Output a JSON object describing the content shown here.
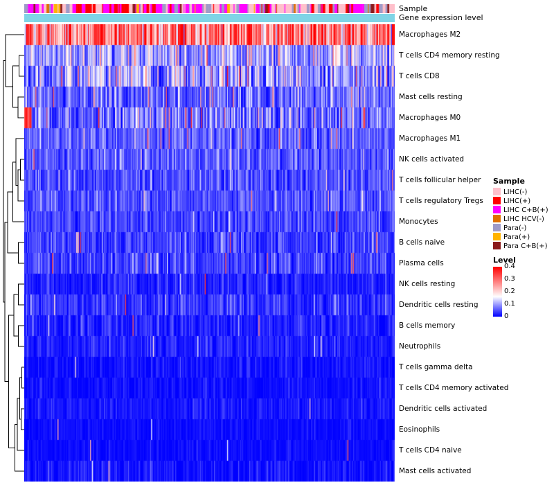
{
  "figure": {
    "annotation_labels": {
      "sample": "Sample",
      "gene": "Gene expression level"
    }
  },
  "chart_data": {
    "type": "heatmap",
    "title": "",
    "n_columns": 400,
    "n_rows": 22,
    "value_range": [
      0,
      0.4
    ],
    "color_scale": {
      "low": "#0000FF",
      "mid": "#FFFFFF",
      "high": "#FF0000",
      "midpoint": 0.16
    },
    "rows": [
      {
        "label": "Macrophages M2",
        "mean": 0.3,
        "sd": 0.08,
        "speckle": 0.03
      },
      {
        "label": "T cells CD4 memory resting",
        "mean": 0.105,
        "sd": 0.05,
        "speckle": 0.05
      },
      {
        "label": "T cells CD8",
        "mean": 0.1,
        "sd": 0.06,
        "speckle": 0.05
      },
      {
        "label": "Mast cells resting",
        "mean": 0.06,
        "sd": 0.035,
        "speckle": 0.04
      },
      {
        "label": "Macrophages M0",
        "mean": 0.07,
        "sd": 0.05,
        "speckle": 0.04,
        "left_high": 8
      },
      {
        "label": "Macrophages M1",
        "mean": 0.06,
        "sd": 0.03,
        "speckle": 0.02
      },
      {
        "label": "NK cells activated",
        "mean": 0.055,
        "sd": 0.03,
        "speckle": 0.02
      },
      {
        "label": "T cells follicular helper",
        "mean": 0.05,
        "sd": 0.028,
        "speckle": 0.02
      },
      {
        "label": "T cells regulatory Tregs",
        "mean": 0.05,
        "sd": 0.025,
        "speckle": 0.015
      },
      {
        "label": "Monocytes",
        "mean": 0.042,
        "sd": 0.025,
        "speckle": 0.015
      },
      {
        "label": "B cells naive",
        "mean": 0.04,
        "sd": 0.03,
        "speckle": 0.02
      },
      {
        "label": "Plasma cells",
        "mean": 0.04,
        "sd": 0.03,
        "speckle": 0.02
      },
      {
        "label": "NK cells resting",
        "mean": 0.02,
        "sd": 0.02,
        "speckle": 0.008
      },
      {
        "label": "Dendritic cells resting",
        "mean": 0.03,
        "sd": 0.024,
        "speckle": 0.01
      },
      {
        "label": "B cells memory",
        "mean": 0.02,
        "sd": 0.02,
        "speckle": 0.008
      },
      {
        "label": "Neutrophils",
        "mean": 0.02,
        "sd": 0.018,
        "speckle": 0.008
      },
      {
        "label": "T cells gamma delta",
        "mean": 0.01,
        "sd": 0.014,
        "speckle": 0.004
      },
      {
        "label": "T cells CD4 memory activated",
        "mean": 0.009,
        "sd": 0.012,
        "speckle": 0.004
      },
      {
        "label": "Dendritic cells activated",
        "mean": 0.012,
        "sd": 0.014,
        "speckle": 0.005
      },
      {
        "label": "Eosinophils",
        "mean": 0.006,
        "sd": 0.01,
        "speckle": 0.003
      },
      {
        "label": "T cells CD4 naive",
        "mean": 0.006,
        "sd": 0.01,
        "speckle": 0.003
      },
      {
        "label": "Mast cells activated",
        "mean": 0.01,
        "sd": 0.018,
        "speckle": 0.006
      }
    ],
    "column_annotation": {
      "label": "Sample",
      "groups": [
        {
          "label": "LIHC(-)",
          "color": "#FFC0CB",
          "weight": 0.3
        },
        {
          "label": "LIHC(+)",
          "color": "#FF0000",
          "weight": 0.16
        },
        {
          "label": "LIHC C+B(+)",
          "color": "#FF00FF",
          "weight": 0.3
        },
        {
          "label": "LIHC HCV(-)",
          "color": "#E07000",
          "weight": 0.02
        },
        {
          "label": "Para(-)",
          "color": "#9E9AC8",
          "weight": 0.15
        },
        {
          "label": "Para(+)",
          "color": "#FFB300",
          "weight": 0.04
        },
        {
          "label": "Para C+B(+)",
          "color": "#8B1A1A",
          "weight": 0.03
        }
      ]
    },
    "gene_annotation": {
      "label": "Gene expression level",
      "color": "#7FD4E6"
    },
    "dendrogram": [
      1.0,
      [
        0.9,
        1,
        [
          0.55,
          [
            0.25,
            2,
            3
          ],
          [
            0.3,
            4,
            5
          ]
        ]
      ],
      [
        0.93,
        [
          0.8,
          [
            0.55,
            [
              0.4,
              6,
              [
                0.3,
                [
                  0.18,
                  7,
                  8
                ],
                9
              ]
            ],
            10
          ],
          [
            0.28,
            11,
            12
          ]
        ],
        [
          0.75,
          [
            0.5,
            [
              0.28,
              13,
              14
            ],
            [
              0.28,
              15,
              16
            ]
          ],
          [
            0.45,
            [
              0.33,
              [
                0.22,
                [
                  0.12,
                  17,
                  18
                ],
                [
                  0.15,
                  19,
                  20
                ]
              ],
              21
            ],
            22
          ]
        ]
      ]
    ]
  },
  "legend": {
    "sample": {
      "title": "Sample",
      "items": [
        {
          "label": "LIHC(-)",
          "color": "#FFC0CB"
        },
        {
          "label": "LIHC(+)",
          "color": "#FF0000"
        },
        {
          "label": "LIHC C+B(+)",
          "color": "#FF00FF"
        },
        {
          "label": "LIHC HCV(-)",
          "color": "#E07000"
        },
        {
          "label": "Para(-)",
          "color": "#9E9AC8"
        },
        {
          "label": "Para(+)",
          "color": "#FFB300"
        },
        {
          "label": "Para C+B(+)",
          "color": "#8B1A1A"
        }
      ]
    },
    "level": {
      "title": "Level",
      "ticks": [
        "0.4",
        "0.3",
        "0.2",
        "0.1",
        "0"
      ],
      "gradient": {
        "top": "#FF0000",
        "mid": "#FFFFFF",
        "bottom": "#0000FF",
        "mid_pos": 0.6
      }
    }
  }
}
